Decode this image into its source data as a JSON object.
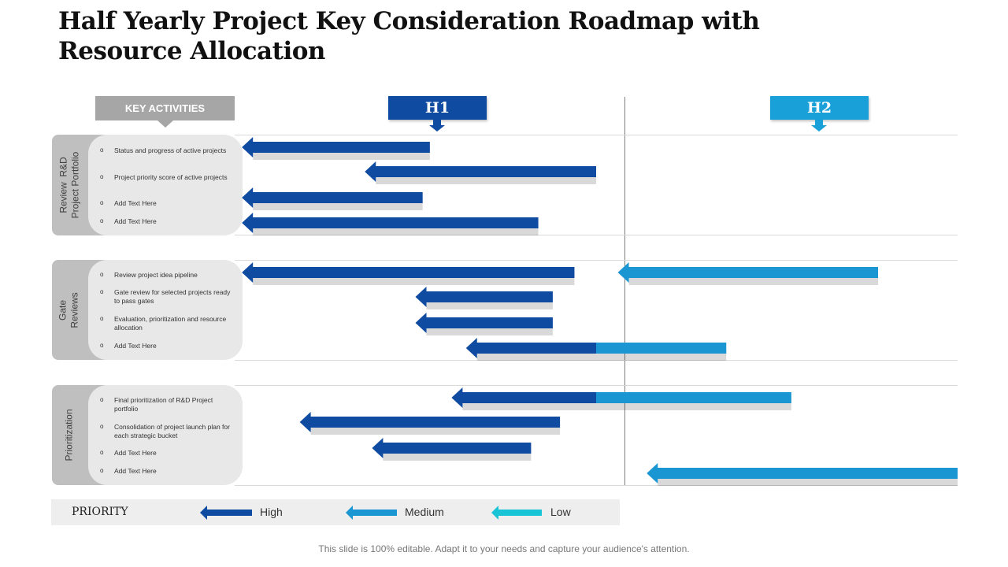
{
  "title": "Half Yearly Project Key Consideration Roadmap with Resource Allocation",
  "key_activities_label": "KEY ACTIVITIES",
  "periods": {
    "h1": "H1",
    "h2": "H2"
  },
  "colors": {
    "high": "#0f4ba0",
    "medium": "#1a96d2",
    "low": "#18c4d6",
    "tab": "#bfbfbf",
    "box": "#e8e8e8"
  },
  "sections": [
    {
      "label": "Review  R&D\nProject Portfolio",
      "activities": [
        "Status and progress of active projects",
        "Project priority score of active projects",
        "Add Text Here",
        "Add Text Here"
      ]
    },
    {
      "label": "Gate\nReviews",
      "activities": [
        "Review project idea pipeline",
        "Gate review for selected projects ready to pass gates",
        "Evaluation, prioritization and resource allocation",
        "Add Text Here"
      ]
    },
    {
      "label": "Prioritization",
      "activities": [
        "Final prioritization of R&D Project portfolio",
        "Consolidation of project launch plan for each strategic bucket",
        "Add Text Here",
        "Add Text Here"
      ]
    }
  ],
  "timeline": {
    "unit": "fraction of the full year (H1 = 0-0.5, H2 = 0.5-1)",
    "bars": [
      {
        "section": 0,
        "row": 0,
        "start": 0.01,
        "end": 0.27,
        "split": null,
        "priority": "high"
      },
      {
        "section": 0,
        "row": 1,
        "start": 0.18,
        "end": 0.5,
        "split": null,
        "priority": "high"
      },
      {
        "section": 0,
        "row": 2,
        "start": 0.01,
        "end": 0.26,
        "split": null,
        "priority": "high"
      },
      {
        "section": 0,
        "row": 3,
        "start": 0.01,
        "end": 0.42,
        "split": null,
        "priority": "high"
      },
      {
        "section": 1,
        "row": 0,
        "start": 0.01,
        "end": 0.47,
        "split": null,
        "priority": "high"
      },
      {
        "section": 1,
        "row": 0,
        "start": 0.53,
        "end": 0.89,
        "split": null,
        "priority": "medium"
      },
      {
        "section": 1,
        "row": 1,
        "start": 0.25,
        "end": 0.44,
        "split": null,
        "priority": "high"
      },
      {
        "section": 1,
        "row": 2,
        "start": 0.25,
        "end": 0.44,
        "split": null,
        "priority": "high"
      },
      {
        "section": 1,
        "row": 3,
        "start": 0.32,
        "end": 0.68,
        "split": 0.5,
        "priority": "high-medium"
      },
      {
        "section": 2,
        "row": 0,
        "start": 0.3,
        "end": 0.77,
        "split": 0.5,
        "priority": "high-medium"
      },
      {
        "section": 2,
        "row": 1,
        "start": 0.09,
        "end": 0.45,
        "split": null,
        "priority": "high"
      },
      {
        "section": 2,
        "row": 2,
        "start": 0.19,
        "end": 0.41,
        "split": null,
        "priority": "high"
      },
      {
        "section": 2,
        "row": 3,
        "start": 0.57,
        "end": 1.0,
        "split": null,
        "priority": "medium"
      }
    ]
  },
  "legend": {
    "title": "PRIORITY",
    "high": "High",
    "medium": "Medium",
    "low": "Low"
  },
  "footer": "This slide is 100% editable. Adapt it to your needs and capture your audience's attention."
}
